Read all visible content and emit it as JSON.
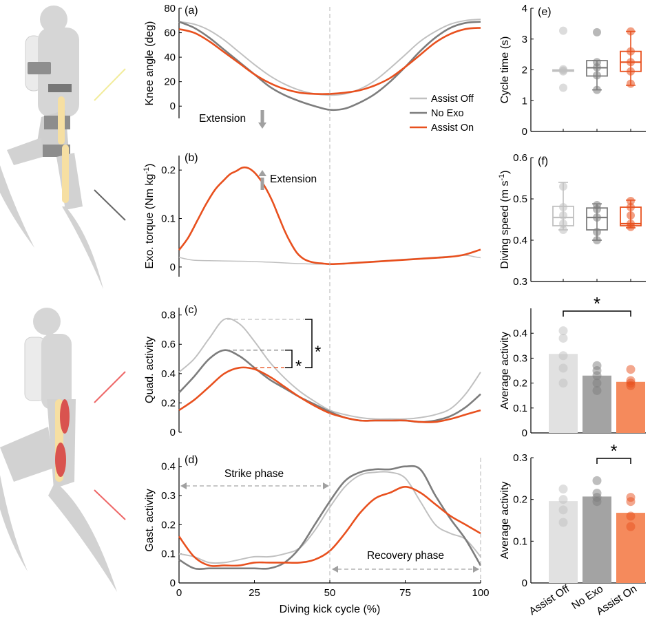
{
  "colors": {
    "assist_off": "#c0c0c0",
    "no_exo": "#7d7d7d",
    "assist_on": "#e8501e",
    "bar_assist_off": "#e1e1e1",
    "bar_no_exo": "#a3a3a3",
    "bar_assist_on": "#f58a5c",
    "dash": "#b4b4b4",
    "arrow": "#a0a0a0",
    "silhouette": "#d6d6d6",
    "bone": "#f6dfa2",
    "muscle": "#d9534f"
  },
  "icons": [
    "diver-exoskeleton-illustration-icon",
    "diver-muscles-illustration-icon"
  ],
  "shared_x": {
    "label": "Diving kick cycle (%)",
    "ticks": [
      "0",
      "25",
      "50",
      "75",
      "100"
    ]
  },
  "chart_data": [
    {
      "panel": "(a)",
      "type": "line",
      "ylabel": "Knee angle (deg)",
      "ylim": [
        -10,
        80
      ],
      "yticks": [
        "0",
        "20",
        "40",
        "60",
        "80"
      ],
      "annotation": "Extension",
      "legend": [
        "Assist Off",
        "No Exo",
        "Assist On"
      ],
      "series": [
        {
          "name": "Assist Off",
          "x": [
            0,
            5,
            10,
            15,
            20,
            25,
            30,
            35,
            40,
            45,
            50,
            55,
            60,
            65,
            70,
            75,
            80,
            85,
            90,
            95,
            100
          ],
          "values": [
            69,
            67,
            62,
            54,
            44,
            34,
            25,
            18,
            13,
            10,
            9,
            10,
            14,
            21,
            31,
            42,
            53,
            61,
            67,
            70,
            71
          ]
        },
        {
          "name": "No Exo",
          "x": [
            0,
            5,
            10,
            15,
            20,
            25,
            30,
            35,
            40,
            45,
            50,
            55,
            60,
            65,
            70,
            75,
            80,
            85,
            90,
            95,
            100
          ],
          "values": [
            69,
            64,
            56,
            46,
            36,
            26,
            16,
            9,
            4,
            0,
            -3,
            -2,
            3,
            10,
            20,
            32,
            45,
            56,
            64,
            68,
            69
          ]
        },
        {
          "name": "Assist On",
          "x": [
            0,
            5,
            10,
            15,
            20,
            25,
            30,
            35,
            40,
            45,
            50,
            55,
            60,
            65,
            70,
            75,
            80,
            85,
            90,
            95,
            100
          ],
          "values": [
            63,
            60,
            53,
            44,
            35,
            26,
            19,
            14,
            11,
            10,
            10,
            11,
            13,
            17,
            23,
            32,
            42,
            52,
            59,
            63,
            64
          ]
        }
      ]
    },
    {
      "panel": "(b)",
      "type": "line",
      "ylabel": "Exo. torque (Nm kg",
      "ylabel_sup": "-1",
      "ylabel_end": ")",
      "ylim": [
        -0.02,
        0.23
      ],
      "yticks": [
        "0",
        "0.1",
        "0.2"
      ],
      "annotation": "Extension",
      "series": [
        {
          "name": "Assist Off",
          "x": [
            0,
            2,
            5,
            10,
            20,
            30,
            40,
            50,
            60,
            70,
            80,
            90,
            95,
            98,
            100
          ],
          "values": [
            0.02,
            0.017,
            0.014,
            0.013,
            0.012,
            0.01,
            0.007,
            0.006,
            0.01,
            0.014,
            0.018,
            0.022,
            0.024,
            0.021,
            0.019
          ]
        },
        {
          "name": "Assist On",
          "x": [
            0,
            3,
            6,
            9,
            12,
            15,
            17,
            19,
            21,
            23,
            25,
            27,
            29,
            31,
            33,
            35,
            37,
            39,
            41,
            43,
            45,
            48,
            50,
            55,
            60,
            70,
            80,
            90,
            95,
            100
          ],
          "values": [
            0.035,
            0.06,
            0.095,
            0.13,
            0.16,
            0.18,
            0.192,
            0.198,
            0.205,
            0.204,
            0.195,
            0.18,
            0.16,
            0.135,
            0.105,
            0.075,
            0.05,
            0.03,
            0.018,
            0.012,
            0.009,
            0.007,
            0.006,
            0.007,
            0.009,
            0.013,
            0.017,
            0.021,
            0.026,
            0.036
          ]
        }
      ]
    },
    {
      "panel": "(c)",
      "type": "line",
      "ylabel": "Quad. activity",
      "ylim": [
        0,
        0.85
      ],
      "yticks": [
        "0",
        "0.2",
        "0.4",
        "0.6",
        "0.8"
      ],
      "significance": [
        "*",
        "*"
      ],
      "series": [
        {
          "name": "Assist Off",
          "x": [
            0,
            5,
            10,
            15,
            20,
            25,
            30,
            35,
            40,
            45,
            50,
            55,
            60,
            65,
            70,
            75,
            80,
            85,
            90,
            95,
            100
          ],
          "values": [
            0.41,
            0.5,
            0.64,
            0.77,
            0.74,
            0.62,
            0.48,
            0.37,
            0.28,
            0.21,
            0.15,
            0.12,
            0.1,
            0.09,
            0.09,
            0.09,
            0.1,
            0.12,
            0.16,
            0.26,
            0.41
          ]
        },
        {
          "name": "No Exo",
          "x": [
            0,
            5,
            10,
            15,
            20,
            25,
            30,
            35,
            40,
            45,
            50,
            55,
            60,
            65,
            70,
            75,
            80,
            85,
            90,
            95,
            100
          ],
          "values": [
            0.27,
            0.38,
            0.5,
            0.56,
            0.52,
            0.44,
            0.36,
            0.3,
            0.24,
            0.19,
            0.14,
            0.1,
            0.08,
            0.08,
            0.08,
            0.08,
            0.07,
            0.08,
            0.11,
            0.17,
            0.26
          ]
        },
        {
          "name": "Assist On",
          "x": [
            0,
            5,
            10,
            15,
            20,
            25,
            30,
            35,
            40,
            45,
            50,
            55,
            60,
            65,
            70,
            75,
            80,
            85,
            90,
            95,
            100
          ],
          "values": [
            0.15,
            0.22,
            0.31,
            0.4,
            0.44,
            0.43,
            0.38,
            0.31,
            0.24,
            0.18,
            0.13,
            0.1,
            0.08,
            0.08,
            0.08,
            0.08,
            0.07,
            0.07,
            0.09,
            0.12,
            0.15
          ]
        }
      ]
    },
    {
      "panel": "(d)",
      "type": "line",
      "ylabel": "Gast. activity",
      "ylim": [
        0,
        0.43
      ],
      "yticks": [
        "0",
        "0.1",
        "0.2",
        "0.3",
        "0.4"
      ],
      "annotations": [
        "Strike phase",
        "Recovery phase"
      ],
      "series": [
        {
          "name": "Assist Off",
          "x": [
            0,
            5,
            10,
            15,
            20,
            25,
            30,
            35,
            40,
            45,
            50,
            55,
            60,
            65,
            70,
            75,
            80,
            85,
            90,
            95,
            100
          ],
          "values": [
            0.1,
            0.09,
            0.07,
            0.07,
            0.08,
            0.09,
            0.09,
            0.1,
            0.12,
            0.18,
            0.26,
            0.33,
            0.37,
            0.38,
            0.38,
            0.36,
            0.28,
            0.2,
            0.17,
            0.15,
            0.09
          ]
        },
        {
          "name": "No Exo",
          "x": [
            0,
            5,
            10,
            15,
            20,
            25,
            30,
            35,
            40,
            45,
            50,
            55,
            60,
            65,
            70,
            75,
            80,
            85,
            90,
            95,
            100
          ],
          "values": [
            0.08,
            0.05,
            0.05,
            0.05,
            0.05,
            0.05,
            0.05,
            0.07,
            0.12,
            0.2,
            0.28,
            0.35,
            0.38,
            0.39,
            0.39,
            0.4,
            0.39,
            0.3,
            0.22,
            0.15,
            0.06
          ]
        },
        {
          "name": "Assist On",
          "x": [
            0,
            5,
            10,
            15,
            20,
            25,
            30,
            35,
            40,
            45,
            50,
            55,
            60,
            65,
            70,
            75,
            80,
            85,
            90,
            95,
            100
          ],
          "values": [
            0.16,
            0.09,
            0.06,
            0.06,
            0.06,
            0.07,
            0.07,
            0.07,
            0.07,
            0.08,
            0.11,
            0.17,
            0.24,
            0.29,
            0.31,
            0.33,
            0.31,
            0.27,
            0.23,
            0.2,
            0.17
          ]
        }
      ]
    },
    {
      "panel": "(e)",
      "type": "box",
      "ylabel": "Cycle time (s)",
      "ylim": [
        0,
        4
      ],
      "yticks": [
        "0",
        "1",
        "2",
        "3",
        "4"
      ],
      "groups": [
        {
          "name": "Assist Off",
          "median": 1.98,
          "q1": 1.96,
          "q3": 2.0,
          "whisker_low": 1.96,
          "whisker_high": 2.0,
          "points": [
            3.27,
            1.95,
            1.98,
            2.02,
            1.42
          ]
        },
        {
          "name": "No Exo",
          "median": 2.07,
          "q1": 1.8,
          "q3": 2.3,
          "whisker_low": 1.35,
          "whisker_high": 2.3,
          "points": [
            3.22,
            2.08,
            2.25,
            1.82,
            1.35
          ]
        },
        {
          "name": "Assist On",
          "median": 2.25,
          "q1": 1.95,
          "q3": 2.6,
          "whisker_low": 1.5,
          "whisker_high": 3.25,
          "points": [
            3.25,
            2.6,
            2.25,
            1.95,
            1.55
          ]
        }
      ]
    },
    {
      "panel": "(f)",
      "type": "box",
      "ylabel": "Diving speed (m s",
      "ylabel_sup": "-1",
      "ylabel_end": ")",
      "ylim": [
        0.3,
        0.6
      ],
      "yticks": [
        "0.3",
        "0.4",
        "0.5",
        "0.6"
      ],
      "groups": [
        {
          "name": "Assist Off",
          "median": 0.455,
          "q1": 0.435,
          "q3": 0.482,
          "whisker_low": 0.425,
          "whisker_high": 0.54,
          "points": [
            0.53,
            0.48,
            0.46,
            0.44,
            0.425
          ]
        },
        {
          "name": "No Exo",
          "median": 0.455,
          "q1": 0.425,
          "q3": 0.478,
          "whisker_low": 0.4,
          "whisker_high": 0.488,
          "points": [
            0.485,
            0.475,
            0.455,
            0.42,
            0.4
          ]
        },
        {
          "name": "Assist On",
          "median": 0.44,
          "q1": 0.435,
          "q3": 0.48,
          "whisker_low": 0.43,
          "whisker_high": 0.497,
          "points": [
            0.495,
            0.48,
            0.46,
            0.44,
            0.432
          ]
        }
      ]
    },
    {
      "panel": "quad-bars",
      "type": "bar",
      "ylabel": "Average activity",
      "ylim": [
        0,
        0.5
      ],
      "yticks": [
        "0",
        "0.1",
        "0.2",
        "0.3",
        "0.4"
      ],
      "categories": [
        "Assist Off",
        "No Exo",
        "Assist On"
      ],
      "values": [
        0.317,
        0.23,
        0.205
      ],
      "points": [
        [
          0.41,
          0.38,
          0.31,
          0.26,
          0.2
        ],
        [
          0.27,
          0.25,
          0.23,
          0.2,
          0.17
        ],
        [
          0.255,
          0.21,
          0.2,
          0.19
        ]
      ],
      "significance": "*"
    },
    {
      "panel": "gast-bars",
      "type": "bar",
      "ylabel": "Average activity",
      "ylim": [
        0,
        0.3
      ],
      "yticks": [
        "0",
        "0.1",
        "0.2",
        "0.3"
      ],
      "categories": [
        "Assist Off",
        "No Exo",
        "Assist On"
      ],
      "values": [
        0.196,
        0.207,
        0.168
      ],
      "points": [
        [
          0.225,
          0.2,
          0.175,
          0.145
        ],
        [
          0.245,
          0.215,
          0.205,
          0.195
        ],
        [
          0.205,
          0.195,
          0.16,
          0.135
        ]
      ],
      "significance": "*"
    }
  ]
}
